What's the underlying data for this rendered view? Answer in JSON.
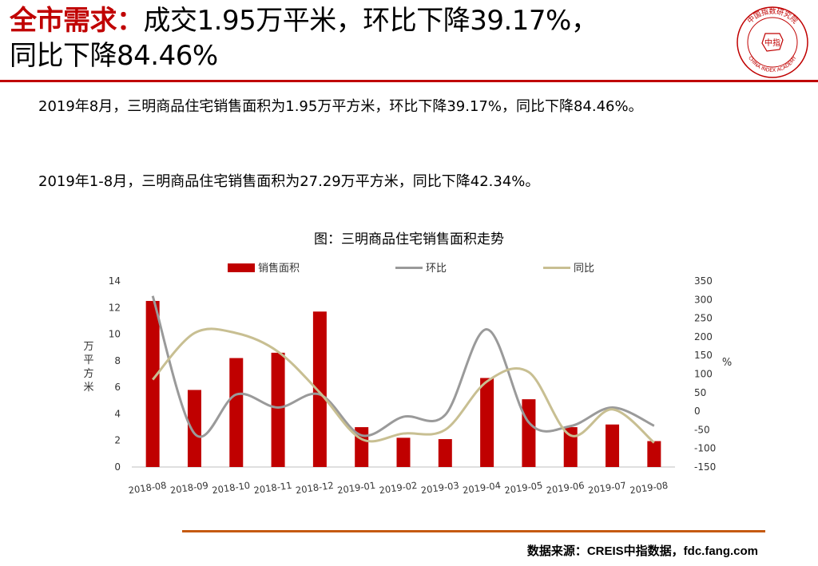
{
  "header": {
    "title_highlight": "全市需求：",
    "title_line1_rest": "成交1.95万平米，环比下降39.17%，",
    "title_line2": "同比下降84.46%"
  },
  "logo": {
    "text_top": "中国指数研究院",
    "text_center": "中指",
    "text_bottom": "CHINA INDEX ACADEMY",
    "color": "#c00000"
  },
  "body": {
    "paragraph1": "2019年8月，三明商品住宅销售面积为1.95万平方米，环比下降39.17%，同比下降84.46%。",
    "paragraph2": "2019年1-8月，三明商品住宅销售面积为27.29万平方米，同比下降42.34%。"
  },
  "chart_data": {
    "type": "bar",
    "title": "图：三明商品住宅销售面积走势",
    "categories": [
      "2018-08",
      "2018-09",
      "2018-10",
      "2018-11",
      "2018-12",
      "2019-01",
      "2019-02",
      "2019-03",
      "2019-04",
      "2019-05",
      "2019-06",
      "2019-07",
      "2019-08"
    ],
    "series": [
      {
        "name": "销售面积",
        "kind": "bar",
        "axis": "left",
        "color": "#c00000",
        "values": [
          12.5,
          5.8,
          8.2,
          8.6,
          11.7,
          3.0,
          2.2,
          2.1,
          6.7,
          5.1,
          3.0,
          3.2,
          1.95
        ]
      },
      {
        "name": "环比",
        "kind": "line",
        "axis": "right",
        "color": "#9a9a9a",
        "values": [
          310,
          -60,
          45,
          10,
          45,
          -65,
          -15,
          -10,
          220,
          -30,
          -40,
          10,
          -39.17
        ]
      },
      {
        "name": "同比",
        "kind": "line",
        "axis": "right",
        "color": "#c8bf92",
        "values": [
          85,
          210,
          210,
          160,
          50,
          -75,
          -60,
          -50,
          80,
          105,
          -65,
          5,
          -84.46
        ]
      }
    ],
    "ylabel": "万平方米",
    "ylim": [
      0,
      14
    ],
    "yticks": [
      "0",
      "2",
      "4",
      "6",
      "8",
      "10",
      "12",
      "14"
    ],
    "y2label": "%",
    "y2lim": [
      -150,
      350
    ],
    "y2ticks": [
      "-150",
      "-100",
      "-50",
      "0",
      "50",
      "100",
      "150",
      "200",
      "250",
      "300",
      "350"
    ],
    "legend": "top",
    "grid": false
  },
  "footer": {
    "source": "数据来源：CREIS中指数据，fdc.fang.com"
  }
}
